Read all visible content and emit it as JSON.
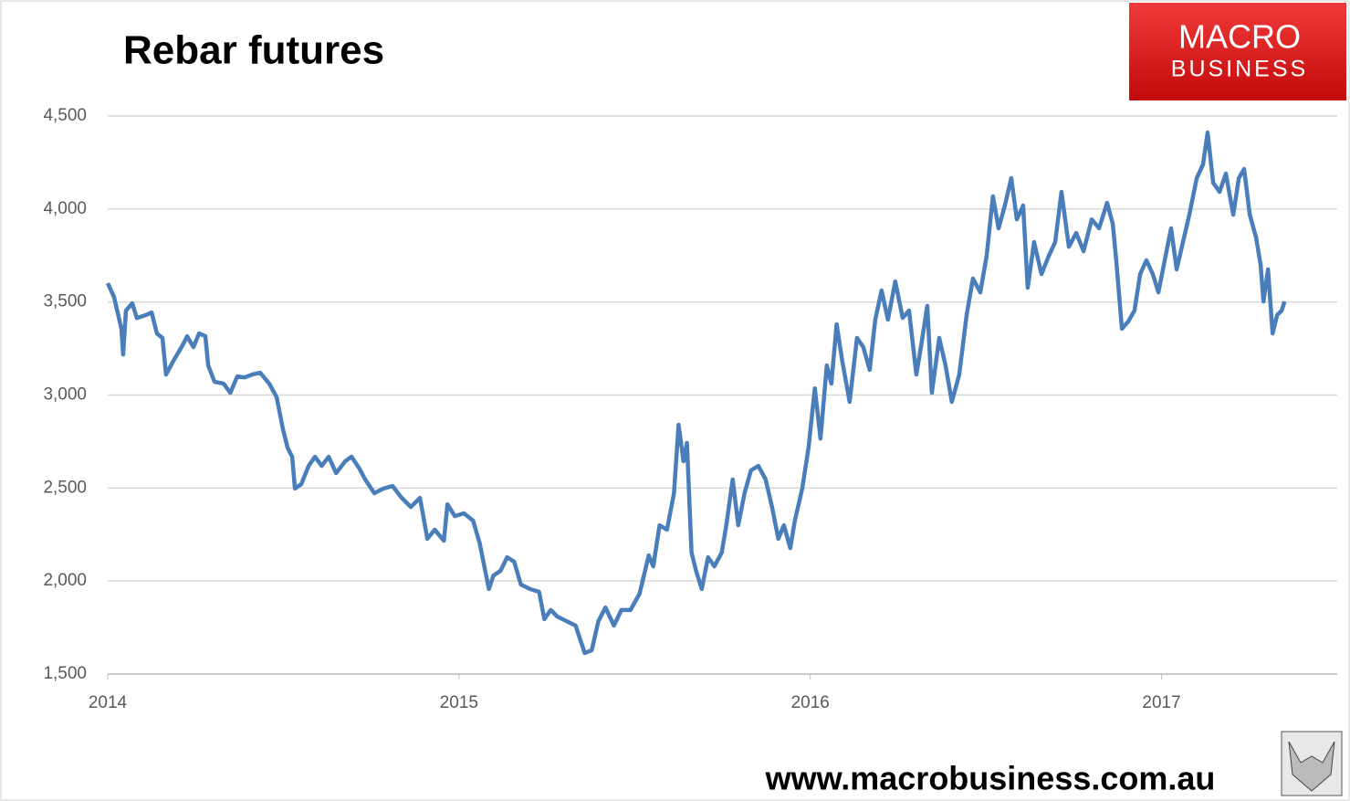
{
  "chart_data": {
    "type": "line",
    "title": "Rebar futures",
    "brand": [
      "MACRO",
      "BUSINESS"
    ],
    "footer": "www.macrobusiness.com.au",
    "xlim": [
      2014,
      2017.5
    ],
    "xticks": [
      2014,
      2015,
      2016,
      2017
    ],
    "ylim": [
      1500,
      4500
    ],
    "yticks": [
      {
        "value": 1500,
        "label": "1,500"
      },
      {
        "value": 2000,
        "label": "2,000"
      },
      {
        "value": 2500,
        "label": "2,500"
      },
      {
        "value": 3000,
        "label": "3,000"
      },
      {
        "value": 3500,
        "label": "3,500"
      },
      {
        "value": 4000,
        "label": "4,000"
      },
      {
        "value": 4500,
        "label": "4,500"
      }
    ],
    "grid": true,
    "series": [
      {
        "color": "#4a7ebb",
        "x": [
          2014.0,
          2014.018,
          2014.039,
          2014.044,
          2014.052,
          2014.07,
          2014.083,
          2014.109,
          2014.125,
          2014.14,
          2014.156,
          2014.166,
          2014.187,
          2014.213,
          2014.226,
          2014.244,
          2014.26,
          2014.278,
          2014.286,
          2014.304,
          2014.33,
          2014.349,
          2014.369,
          2014.39,
          2014.411,
          2014.434,
          2014.46,
          2014.481,
          2014.499,
          2014.512,
          2014.525,
          2014.533,
          2014.551,
          2014.572,
          2014.59,
          2014.609,
          2014.629,
          2014.65,
          2014.676,
          2014.694,
          2014.715,
          2014.733,
          2014.759,
          2014.785,
          2014.811,
          2014.837,
          2014.863,
          2014.889,
          2014.91,
          2014.931,
          2014.957,
          2014.967,
          2014.988,
          2015.014,
          2015.04,
          2015.059,
          2015.072,
          2015.085,
          2015.098,
          2015.118,
          2015.137,
          2015.157,
          2015.176,
          2015.202,
          2015.228,
          2015.243,
          2015.261,
          2015.28,
          2015.306,
          2015.332,
          2015.358,
          2015.378,
          2015.397,
          2015.417,
          2015.441,
          2015.462,
          2015.488,
          2015.514,
          2015.54,
          2015.553,
          2015.571,
          2015.592,
          2015.612,
          2015.625,
          2015.639,
          2015.649,
          2015.662,
          2015.675,
          2015.691,
          2015.709,
          2015.727,
          2015.748,
          2015.761,
          2015.779,
          2015.795,
          2015.813,
          2015.831,
          2015.852,
          2015.873,
          2015.891,
          2015.909,
          2015.925,
          2015.943,
          2015.956,
          2015.977,
          2015.995,
          2016.013,
          2016.029,
          2016.047,
          2016.06,
          2016.075,
          2016.091,
          2016.112,
          2016.133,
          2016.151,
          2016.169,
          2016.185,
          2016.203,
          2016.221,
          2016.242,
          2016.263,
          2016.281,
          2016.302,
          2016.315,
          2016.333,
          2016.346,
          2016.367,
          2016.385,
          2016.403,
          2016.424,
          2016.445,
          2016.463,
          2016.484,
          2016.502,
          2016.52,
          2016.536,
          2016.554,
          2016.572,
          2016.588,
          2016.606,
          2016.619,
          2016.637,
          2016.658,
          2016.679,
          2016.697,
          2016.715,
          2016.736,
          2016.757,
          2016.778,
          2016.801,
          2016.822,
          2016.845,
          2016.861,
          2016.871,
          2016.887,
          2016.905,
          2016.923,
          2016.939,
          2016.957,
          2016.975,
          2016.991,
          2017.009,
          2017.027,
          2017.043,
          2017.061,
          2017.079,
          2017.1,
          2017.118,
          2017.131,
          2017.147,
          2017.165,
          2017.183,
          2017.204,
          2017.22,
          2017.235,
          2017.251,
          2017.269,
          2017.282,
          2017.29,
          2017.303,
          2017.316,
          2017.329,
          2017.342,
          2017.35
        ],
        "values": [
          3601,
          3528,
          3356,
          3218,
          3454,
          3493,
          3414,
          3430,
          3444,
          3331,
          3307,
          3110,
          3184,
          3267,
          3316,
          3258,
          3331,
          3316,
          3159,
          3071,
          3061,
          3012,
          3100,
          3095,
          3110,
          3120,
          3061,
          2988,
          2816,
          2717,
          2668,
          2497,
          2521,
          2619,
          2668,
          2619,
          2668,
          2580,
          2644,
          2668,
          2609,
          2546,
          2472,
          2497,
          2511,
          2447,
          2398,
          2447,
          2227,
          2276,
          2217,
          2413,
          2349,
          2364,
          2325,
          2202,
          2079,
          1957,
          2030,
          2055,
          2128,
          2104,
          1981,
          1957,
          1942,
          1795,
          1844,
          1809,
          1785,
          1760,
          1613,
          1628,
          1785,
          1858,
          1760,
          1844,
          1844,
          1932,
          2138,
          2079,
          2300,
          2276,
          2472,
          2840,
          2644,
          2742,
          2153,
          2055,
          1957,
          2128,
          2079,
          2153,
          2300,
          2546,
          2300,
          2472,
          2595,
          2619,
          2546,
          2398,
          2227,
          2300,
          2177,
          2325,
          2497,
          2717,
          3036,
          2766,
          3159,
          3061,
          3380,
          3184,
          2963,
          3307,
          3258,
          3135,
          3405,
          3562,
          3405,
          3611,
          3415,
          3454,
          3110,
          3258,
          3479,
          3012,
          3307,
          3159,
          2963,
          3110,
          3430,
          3626,
          3552,
          3748,
          4068,
          3896,
          4019,
          4166,
          3944,
          4019,
          3577,
          3822,
          3650,
          3748,
          3822,
          4092,
          3797,
          3871,
          3773,
          3944,
          3896,
          4033,
          3920,
          3724,
          3356,
          3395,
          3454,
          3650,
          3724,
          3650,
          3552,
          3724,
          3896,
          3675,
          3822,
          3969,
          4166,
          4240,
          4411,
          4141,
          4092,
          4190,
          3969,
          4166,
          4215,
          3969,
          3847,
          3699,
          3503,
          3675,
          3331,
          3430,
          3454,
          3503
        ]
      }
    ]
  }
}
